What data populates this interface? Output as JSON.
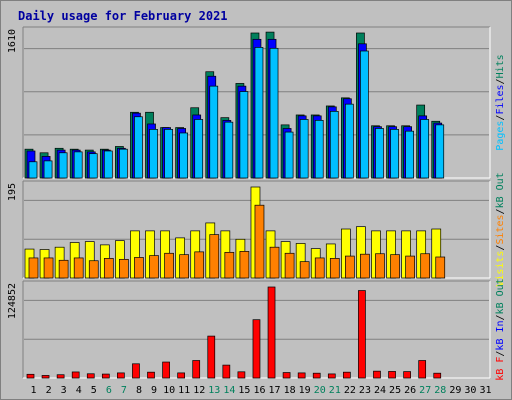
{
  "title": "Daily usage for February 2021",
  "colors": {
    "background": "#c0c0c0",
    "hits": "#00805c",
    "files": "#0000ff",
    "pages": "#00c0ff",
    "visits": "#ffff00",
    "sites": "#ff8000",
    "kb_in": "#0000ff",
    "kb_out": "#00805c",
    "kb_f": "#ff0000",
    "weekend_label": "#00805c"
  },
  "chart_data": [
    {
      "type": "bar",
      "panel": "top",
      "max_label": "1610",
      "ylim": [
        0,
        1610
      ],
      "legend": [
        "Pages",
        "Files",
        "Hits"
      ],
      "categories": [
        "1",
        "2",
        "3",
        "4",
        "5",
        "6",
        "7",
        "8",
        "9",
        "10",
        "11",
        "12",
        "13",
        "14",
        "15",
        "16",
        "17",
        "18",
        "19",
        "20",
        "21",
        "22",
        "23",
        "24",
        "25",
        "26",
        "27",
        "28",
        "29",
        "30",
        "31"
      ],
      "series": [
        {
          "name": "Hits",
          "values": [
            320,
            280,
            330,
            320,
            310,
            320,
            350,
            730,
            730,
            560,
            560,
            780,
            1180,
            670,
            1050,
            1610,
            1620,
            590,
            700,
            700,
            800,
            890,
            1610,
            580,
            580,
            580,
            810,
            630,
            0,
            0,
            0
          ]
        },
        {
          "name": "Files",
          "values": [
            300,
            240,
            310,
            310,
            290,
            310,
            330,
            720,
            600,
            560,
            550,
            700,
            1130,
            640,
            1020,
            1540,
            1540,
            550,
            690,
            690,
            790,
            880,
            1490,
            570,
            570,
            570,
            690,
            610,
            0,
            0,
            0
          ]
        },
        {
          "name": "Pages",
          "values": [
            180,
            190,
            280,
            290,
            270,
            300,
            320,
            680,
            540,
            540,
            500,
            650,
            1020,
            620,
            960,
            1450,
            1440,
            510,
            650,
            640,
            740,
            820,
            1410,
            550,
            540,
            520,
            650,
            590,
            0,
            0,
            0
          ]
        }
      ]
    },
    {
      "type": "bar",
      "panel": "middle",
      "max_label": "195",
      "ylim": [
        0,
        195
      ],
      "legend": [
        "Visits",
        "Sites",
        "kB Out"
      ],
      "categories": [
        "1",
        "2",
        "3",
        "4",
        "5",
        "6",
        "7",
        "8",
        "9",
        "10",
        "11",
        "12",
        "13",
        "14",
        "15",
        "16",
        "17",
        "18",
        "19",
        "20",
        "21",
        "22",
        "23",
        "24",
        "25",
        "26",
        "27",
        "28",
        "29",
        "30",
        "31"
      ],
      "series": [
        {
          "name": "Visits",
          "values": [
            62,
            61,
            66,
            76,
            78,
            71,
            80,
            101,
            101,
            101,
            86,
            101,
            118,
            101,
            83,
            195,
            101,
            78,
            74,
            63,
            73,
            105,
            110,
            101,
            101,
            101,
            101,
            105,
            0,
            0,
            0
          ]
        },
        {
          "name": "Sites",
          "values": [
            43,
            43,
            38,
            43,
            37,
            42,
            40,
            44,
            48,
            53,
            50,
            56,
            93,
            55,
            57,
            156,
            66,
            53,
            35,
            43,
            42,
            47,
            51,
            52,
            50,
            47,
            52,
            45,
            0,
            0,
            0
          ]
        }
      ]
    },
    {
      "type": "bar",
      "panel": "bottom",
      "max_label": "124852",
      "ylim": [
        0,
        124852
      ],
      "legend": [
        "kB F",
        "kB In",
        "kB Out"
      ],
      "categories": [
        "1",
        "2",
        "3",
        "4",
        "5",
        "6",
        "7",
        "8",
        "9",
        "10",
        "11",
        "12",
        "13",
        "14",
        "15",
        "16",
        "17",
        "18",
        "19",
        "20",
        "21",
        "22",
        "23",
        "24",
        "25",
        "26",
        "27",
        "28",
        "29",
        "30",
        "31"
      ],
      "series": [
        {
          "name": "kB F",
          "values": [
            5100,
            3500,
            4500,
            8300,
            5800,
            5400,
            7000,
            19500,
            8000,
            21900,
            7000,
            24000,
            57500,
            17700,
            8500,
            80000,
            124852,
            7500,
            7000,
            6600,
            5600,
            8000,
            120000,
            9400,
            9000,
            8800,
            24000,
            6600,
            0,
            0,
            0
          ]
        }
      ]
    }
  ],
  "x_axis": {
    "labels": [
      "1",
      "2",
      "3",
      "4",
      "5",
      "6",
      "7",
      "8",
      "9",
      "10",
      "11",
      "12",
      "13",
      "14",
      "15",
      "16",
      "17",
      "18",
      "19",
      "20",
      "21",
      "22",
      "23",
      "24",
      "25",
      "26",
      "27",
      "28",
      "29",
      "30",
      "31"
    ],
    "weekend": [
      6,
      7,
      13,
      14,
      20,
      21,
      27,
      28
    ]
  }
}
